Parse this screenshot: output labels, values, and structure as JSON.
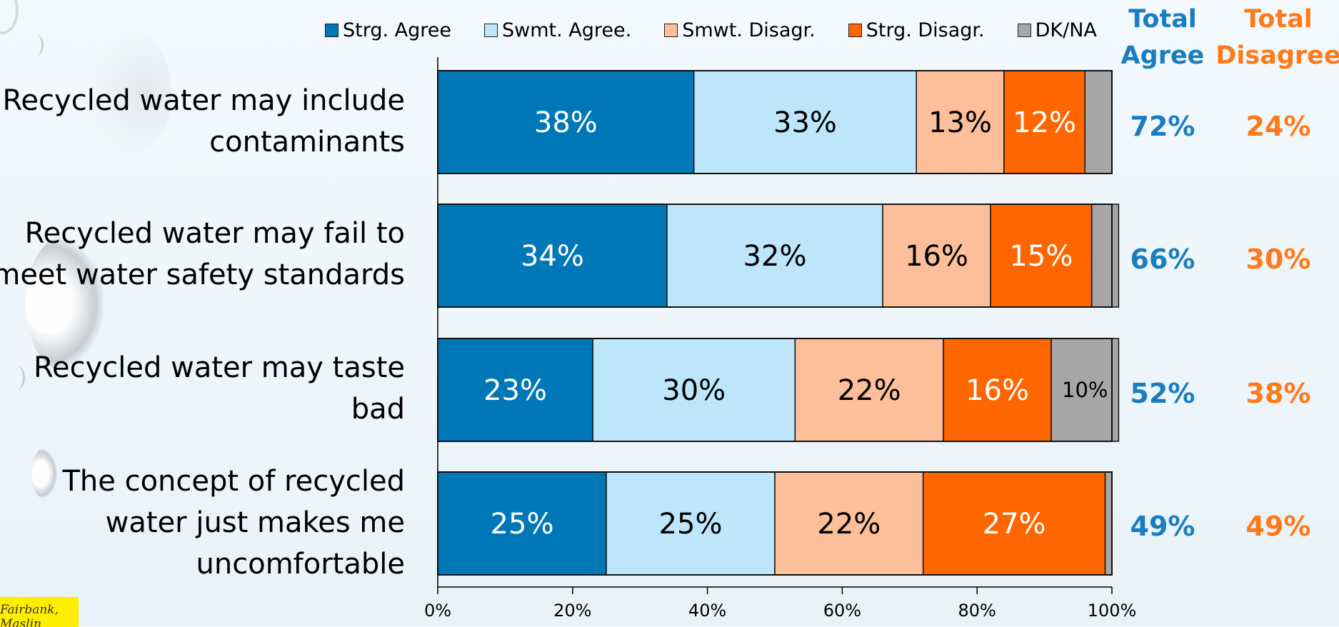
{
  "legend": [
    {
      "label": "Strg. Agree",
      "color": "#0077b6"
    },
    {
      "label": "Swmt. Agree.",
      "color": "#bde6fb"
    },
    {
      "label": "Smwt. Disagr.",
      "color": "#fcbf99"
    },
    {
      "label": "Strg. Disagr.",
      "color": "#ff6600"
    },
    {
      "label": "DK/NA",
      "color": "#a6a6a6"
    }
  ],
  "headers": {
    "total_agree_line1": "Total",
    "total_agree_line2": "Agree",
    "total_disagree_line1": "Total",
    "total_disagree_line2": "Disagree",
    "agree_color": "#1a7dc0",
    "disagree_color": "#ff7a1a"
  },
  "rows": [
    {
      "label_line1": "Recycled water may include",
      "label_line2": "contaminants",
      "label_line3": "",
      "total_agree": "72%",
      "total_disagree": "24%"
    },
    {
      "label_line1": "Recycled water may fail to",
      "label_line2": "meet water safety standards",
      "label_line3": "",
      "total_agree": "66%",
      "total_disagree": "30%"
    },
    {
      "label_line1": "Recycled water may taste",
      "label_line2": "bad",
      "label_line3": "",
      "total_agree": "52%",
      "total_disagree": "38%"
    },
    {
      "label_line1": "The concept of recycled",
      "label_line2": "water just makes me",
      "label_line3": "uncomfortable",
      "total_agree": "49%",
      "total_disagree": "49%"
    }
  ],
  "logo_text": "Fairbank, Maslin",
  "chart_data": {
    "type": "bar",
    "orientation": "horizontal",
    "stacked": true,
    "categories": [
      "Recycled water may include contaminants",
      "Recycled water may fail to meet water safety standards",
      "Recycled water may taste bad",
      "The concept of recycled water just makes me uncomfortable"
    ],
    "series": [
      {
        "name": "Strg. Agree",
        "values": [
          38,
          34,
          23,
          25
        ],
        "labels": [
          "38%",
          "34%",
          "23%",
          "25%"
        ],
        "color": "#0077b6",
        "label_color": "#ffffff"
      },
      {
        "name": "Swmt. Agree.",
        "values": [
          33,
          32,
          30,
          25
        ],
        "labels": [
          "33%",
          "32%",
          "30%",
          "25%"
        ],
        "color": "#bde6fb",
        "label_color": "#000000"
      },
      {
        "name": "Smwt. Disagr.",
        "values": [
          13,
          16,
          22,
          22
        ],
        "labels": [
          "13%",
          "16%",
          "22%",
          "22%"
        ],
        "color": "#fcbf99",
        "label_color": "#000000"
      },
      {
        "name": "Strg. Disagr.",
        "values": [
          12,
          15,
          16,
          27
        ],
        "labels": [
          "12%",
          "15%",
          "16%",
          "27%"
        ],
        "color": "#ff6600",
        "label_color": "#ffffff"
      },
      {
        "name": "DK/NA",
        "values": [
          4,
          4,
          10,
          1
        ],
        "labels": [
          "",
          "",
          "10%",
          ""
        ],
        "color": "#a6a6a6",
        "label_color": "#000000"
      }
    ],
    "x_ticks": [
      "0%",
      "20%",
      "40%",
      "60%",
      "80%",
      "100%"
    ],
    "xlim": [
      0,
      100
    ],
    "grid": false,
    "legend_position": "top"
  }
}
